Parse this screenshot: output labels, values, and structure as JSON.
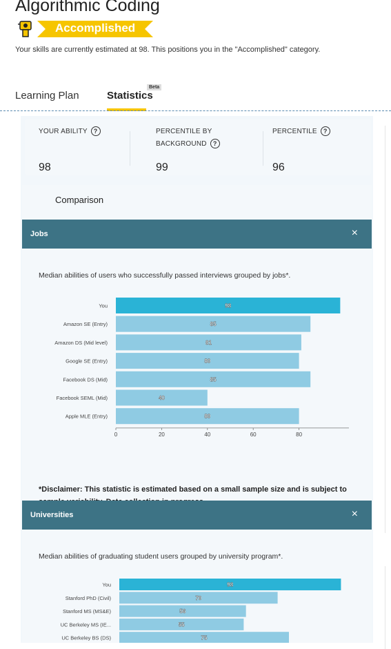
{
  "header": {
    "title": "Algorithmic Coding",
    "badge": "Accomplished",
    "estimate": "Your skills are currently estimated at 98. This positions you in the \"Accomplished\" category."
  },
  "tabs": {
    "learning_plan": "Learning Plan",
    "statistics": "Statistics",
    "beta": "Beta"
  },
  "stats": {
    "ability_label": "YOUR ABILITY",
    "ability_value": "98",
    "bg_label_1": "PERCENTILE BY",
    "bg_label_2": "BACKGROUND",
    "bg_value": "99",
    "pct_label": "PERCENTILE",
    "pct_value": "96",
    "help": "?"
  },
  "comparison": {
    "title": "Comparison"
  },
  "jobs": {
    "title": "Jobs",
    "close": "×",
    "description": "Median abilities of users who successfully passed interviews grouped by jobs*.",
    "disclaimer": "*Disclaimer: This statistic is estimated based on a small sample size and is subject to sample variability. Data collection in progress"
  },
  "universities": {
    "title": "Universities",
    "close": "×",
    "description": "Median abilities of graduating student users grouped by university program*."
  },
  "colors": {
    "highlight": "#2ab3d6",
    "bar": "#8fcbe3",
    "header": "#3d7385",
    "badge": "#f6c500"
  },
  "chart_data": [
    {
      "type": "bar",
      "orientation": "horizontal",
      "categories": [
        "You",
        "Amazon SE (Entry)",
        "Amazon DS (Mid level)",
        "Google SE (Entry)",
        "Facebook DS (Mid)",
        "Facebook SEML (Mid)",
        "Apple MLE (Entry)"
      ],
      "values": [
        98,
        85,
        81,
        80,
        85,
        40,
        80
      ],
      "ticks": [
        0,
        20,
        40,
        60,
        80
      ],
      "xlim": [
        0,
        100
      ]
    },
    {
      "type": "bar",
      "orientation": "horizontal",
      "categories": [
        "You",
        "Stanford PhD (Civil)",
        "Stanford MS (MS&E)",
        "UC Berkeley MS (IE...",
        "UC Berkeley BS (DS)"
      ],
      "values": [
        98,
        70,
        56,
        55,
        75
      ],
      "xlim": [
        0,
        100
      ]
    }
  ]
}
